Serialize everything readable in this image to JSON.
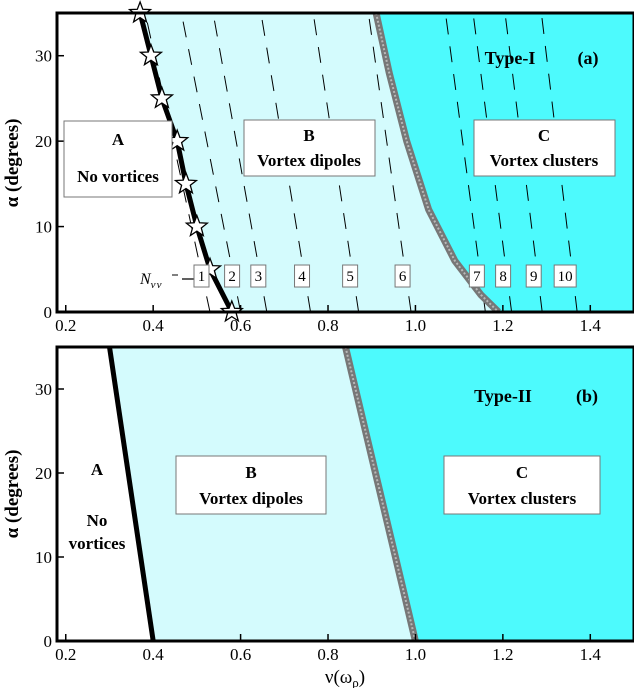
{
  "colors": {
    "region_A": "#ffffff",
    "region_B": "#d4fbfd",
    "region_C": "#4dfafd",
    "boundary_AB": "#000000",
    "boundary_BC": "#777777"
  },
  "chart_data": [
    {
      "type": "area",
      "panel": "(a)",
      "title": "Type-I",
      "panel_label": "(a)",
      "xlabel": "",
      "ylabel": "α (degrees)",
      "xlim": [
        0.18,
        1.5
      ],
      "ylim": [
        0,
        35
      ],
      "xticks": [
        0.2,
        0.4,
        0.6,
        0.8,
        1.0,
        1.2,
        1.4
      ],
      "xtick_labels": [
        "0.2",
        "0.4",
        "0.6",
        "0.8",
        "1.0",
        "1.2",
        "1.4"
      ],
      "yticks": [
        0,
        10,
        20,
        30
      ],
      "ytick_labels": [
        "0",
        "10",
        "20",
        "30"
      ],
      "regions": [
        {
          "id": "A",
          "letter": "A",
          "name": "No vortices"
        },
        {
          "id": "B",
          "letter": "B",
          "name": "Vortex dipoles"
        },
        {
          "id": "C",
          "letter": "C",
          "name": "Vortex clusters"
        }
      ],
      "boundary_AB": {
        "x": [
          0.37,
          0.395,
          0.42,
          0.455,
          0.475,
          0.5,
          0.53,
          0.58
        ],
        "y": [
          35,
          30,
          25,
          20,
          15,
          10,
          5,
          0
        ]
      },
      "boundary_AB_markers": {
        "marker": "star",
        "x": [
          0.37,
          0.395,
          0.42,
          0.455,
          0.475,
          0.5,
          0.53,
          0.58
        ],
        "y": [
          35,
          30,
          25,
          20,
          15,
          10,
          5,
          0
        ]
      },
      "boundary_BC": {
        "x": [
          0.91,
          0.94,
          0.98,
          1.03,
          1.09,
          1.15,
          1.19
        ],
        "y": [
          35,
          28,
          20,
          12,
          6,
          2,
          0
        ]
      },
      "contour_annotation": "N_{v\\bar v}",
      "contour_lines": [
        {
          "label": "1",
          "x0": 0.53,
          "slope": 0.0235
        },
        {
          "label": "2",
          "x0": 0.6,
          "slope": 0.0215
        },
        {
          "label": "3",
          "x0": 0.66,
          "slope": 0.0195
        },
        {
          "label": "4",
          "x0": 0.76,
          "slope": 0.018
        },
        {
          "label": "5",
          "x0": 0.87,
          "slope": 0.0165
        },
        {
          "label": "6",
          "x0": 0.99,
          "slope": 0.0155
        },
        {
          "label": "7",
          "x0": 1.16,
          "slope": 0.0145
        },
        {
          "label": "8",
          "x0": 1.22,
          "slope": 0.014
        },
        {
          "label": "9",
          "x0": 1.29,
          "slope": 0.0135
        },
        {
          "label": "10",
          "x0": 1.37,
          "slope": 0.013
        }
      ]
    },
    {
      "type": "area",
      "panel": "(b)",
      "title": "Type-II",
      "panel_label": "(b)",
      "xlabel": "ν(ωρ)",
      "ylabel": "α (degrees)",
      "xlim": [
        0.18,
        1.5
      ],
      "ylim": [
        0,
        35
      ],
      "xticks": [
        0.2,
        0.4,
        0.6,
        0.8,
        1.0,
        1.2,
        1.4
      ],
      "xtick_labels": [
        "0.2",
        "0.4",
        "0.6",
        "0.8",
        "1.0",
        "1.2",
        "1.4"
      ],
      "yticks": [
        0,
        10,
        20,
        30
      ],
      "ytick_labels": [
        "0",
        "10",
        "20",
        "30"
      ],
      "regions": [
        {
          "id": "A",
          "letter": "A",
          "name_line1": "No",
          "name_line2": "vortices"
        },
        {
          "id": "B",
          "letter": "B",
          "name": "Vortex dipoles"
        },
        {
          "id": "C",
          "letter": "C",
          "name": "Vortex clusters"
        }
      ],
      "boundary_AB": {
        "x": [
          0.3,
          0.4
        ],
        "y": [
          35,
          0
        ]
      },
      "boundary_BC": {
        "x": [
          0.84,
          1.0
        ],
        "y": [
          35,
          0
        ]
      }
    }
  ]
}
